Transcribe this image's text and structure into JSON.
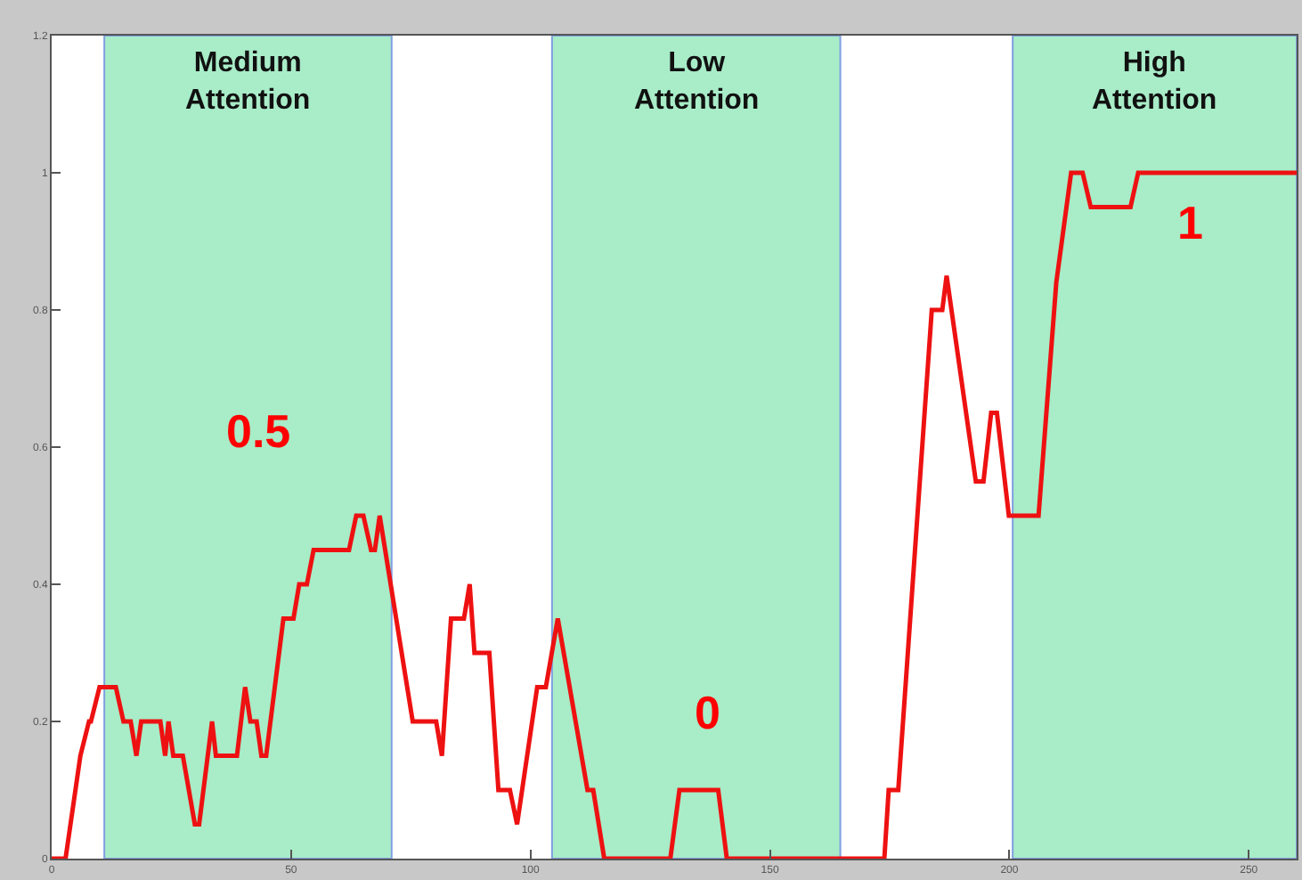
{
  "chart_data": {
    "type": "line",
    "x": [
      0,
      2.9,
      6,
      7.8,
      8.2,
      10,
      13.4,
      15,
      16.5,
      17.7,
      18.7,
      22.7,
      23.7,
      24.4,
      25.4,
      27.4,
      29.9,
      30.8,
      33.5,
      34.3,
      38.7,
      40.4,
      41.5,
      42.8,
      43.8,
      44.8,
      48.4,
      50.5,
      51.7,
      53.3,
      54.7,
      62.1,
      63.6,
      65.1,
      66.7,
      67.5,
      68.5,
      70.8,
      75.4,
      80.3,
      81.5,
      83.4,
      86.1,
      87.3,
      88.3,
      91.4,
      93.3,
      95.7,
      97.2,
      101.4,
      103.2,
      105.7,
      111.9,
      113.1,
      115.4,
      129.2,
      131.1,
      139.2,
      141,
      173.9,
      174.8,
      176.8,
      183.8,
      186,
      186.9,
      193,
      194.6,
      196.2,
      197.4,
      199.9,
      206.1,
      209.8,
      212.9,
      215.3,
      217,
      225.3,
      226.9,
      260
    ],
    "series": [
      {
        "color": "#ee1111",
        "values": [
          0,
          0,
          0.15,
          0.2,
          0.2,
          0.25,
          0.25,
          0.2,
          0.2,
          0.15,
          0.2,
          0.2,
          0.15,
          0.2,
          0.15,
          0.15,
          0.05,
          0.05,
          0.2,
          0.15,
          0.15,
          0.25,
          0.2,
          0.2,
          0.15,
          0.15,
          0.35,
          0.35,
          0.4,
          0.4,
          0.45,
          0.45,
          0.5,
          0.5,
          0.45,
          0.45,
          0.5,
          0.4,
          0.2,
          0.2,
          0.15,
          0.35,
          0.35,
          0.4,
          0.3,
          0.3,
          0.1,
          0.1,
          0.05,
          0.25,
          0.25,
          0.35,
          0.1,
          0.1,
          0,
          0,
          0.1,
          0.1,
          0,
          0,
          0.1,
          0.1,
          0.8,
          0.8,
          0.85,
          0.55,
          0.55,
          0.65,
          0.65,
          0.5,
          0.5,
          0.84,
          1,
          1,
          0.95,
          0.95,
          1,
          1
        ]
      }
    ],
    "xlim": [
      0,
      260
    ],
    "xticks": [
      0,
      50,
      100,
      150,
      200,
      250
    ],
    "ylim": [
      0,
      1.2
    ],
    "yticks": [
      0,
      0.2,
      0.4,
      0.6,
      0.8,
      1,
      1.2
    ],
    "line_style": "solid",
    "bands": [
      {
        "axis": "x",
        "from": 11,
        "to": 71,
        "label": "Medium\nAttention",
        "color": "#a8ecc8"
      },
      {
        "axis": "x",
        "from": 104.5,
        "to": 164.7,
        "label": "Low\nAttention",
        "color": "#a8ecc8"
      },
      {
        "axis": "x",
        "from": 200.7,
        "to": 260,
        "label": "High\nAttention",
        "color": "#a8ecc8"
      }
    ],
    "annotations": [
      "0.5",
      "0",
      "1"
    ]
  }
}
